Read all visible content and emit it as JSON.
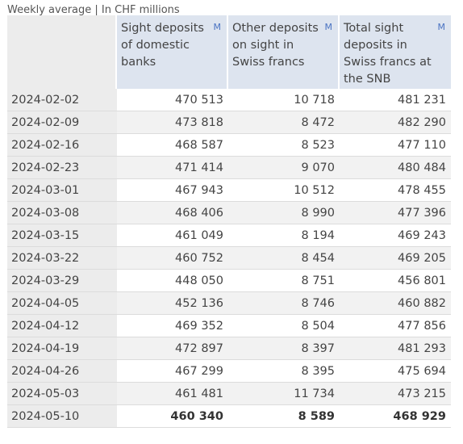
{
  "caption": "Weekly average | In CHF millions",
  "columns": [
    {
      "label": "Sight deposits of domestic banks",
      "menu": "M"
    },
    {
      "label": "Other deposits on sight in Swiss francs",
      "menu": "M"
    },
    {
      "label": "Total sight deposits in Swiss francs at the SNB",
      "menu": "M"
    }
  ],
  "rows": [
    {
      "date": "2024-02-02",
      "a": "470 513",
      "b": "10 718",
      "c": "481 231"
    },
    {
      "date": "2024-02-09",
      "a": "473 818",
      "b": "8 472",
      "c": "482 290"
    },
    {
      "date": "2024-02-16",
      "a": "468 587",
      "b": "8 523",
      "c": "477 110"
    },
    {
      "date": "2024-02-23",
      "a": "471 414",
      "b": "9 070",
      "c": "480 484"
    },
    {
      "date": "2024-03-01",
      "a": "467 943",
      "b": "10 512",
      "c": "478 455"
    },
    {
      "date": "2024-03-08",
      "a": "468 406",
      "b": "8 990",
      "c": "477 396"
    },
    {
      "date": "2024-03-15",
      "a": "461 049",
      "b": "8 194",
      "c": "469 243"
    },
    {
      "date": "2024-03-22",
      "a": "460 752",
      "b": "8 454",
      "c": "469 205"
    },
    {
      "date": "2024-03-29",
      "a": "448 050",
      "b": "8 751",
      "c": "456 801"
    },
    {
      "date": "2024-04-05",
      "a": "452 136",
      "b": "8 746",
      "c": "460 882"
    },
    {
      "date": "2024-04-12",
      "a": "469 352",
      "b": "8 504",
      "c": "477 856"
    },
    {
      "date": "2024-04-19",
      "a": "472 897",
      "b": "8 397",
      "c": "481 293"
    },
    {
      "date": "2024-04-26",
      "a": "467 299",
      "b": "8 395",
      "c": "475 694"
    },
    {
      "date": "2024-05-03",
      "a": "461 481",
      "b": "11 734",
      "c": "473 215"
    },
    {
      "date": "2024-05-10",
      "a": "460 340",
      "b": "8 589",
      "c": "468 929"
    }
  ]
}
